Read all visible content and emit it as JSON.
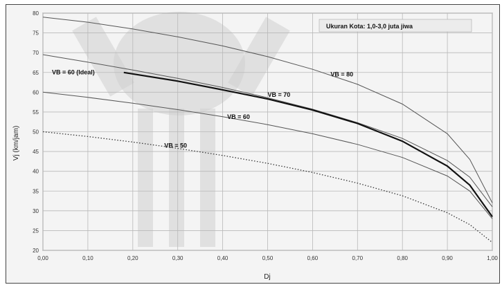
{
  "chart_data": {
    "type": "line",
    "title": "",
    "note": "Ukuran Kota: 1,0-3,0 juta jiwa",
    "xlabel": "Dj",
    "ylabel": "Vj (km/jam)",
    "xlim": [
      0,
      1
    ],
    "ylim": [
      20,
      80
    ],
    "xticks": [
      "0,00",
      "0,10",
      "0,20",
      "0,30",
      "0,40",
      "0,50",
      "0,60",
      "0,70",
      "0,80",
      "0,90",
      "1,00"
    ],
    "yticks": [
      "20",
      "25",
      "30",
      "35",
      "40",
      "45",
      "50",
      "55",
      "60",
      "65",
      "70",
      "75",
      "80"
    ],
    "grid": true,
    "series": [
      {
        "name": "VB = 80",
        "style": "thin",
        "x": [
          0,
          0.1,
          0.2,
          0.3,
          0.4,
          0.5,
          0.6,
          0.7,
          0.8,
          0.9,
          0.95,
          1.0
        ],
        "y": [
          79,
          77.7,
          76,
          74,
          71.7,
          69,
          65.8,
          62,
          57,
          49.5,
          43,
          32
        ]
      },
      {
        "name": "",
        "style": "thin",
        "x": [
          0,
          0.1,
          0.2,
          0.3,
          0.4,
          0.5,
          0.6,
          0.7,
          0.8,
          0.9,
          0.95,
          1.0
        ],
        "y": [
          69.5,
          67.6,
          65.6,
          63.5,
          61.2,
          58.6,
          55.7,
          52.3,
          48.3,
          42.7,
          38.5,
          31
        ]
      },
      {
        "name": "VB = 70",
        "style": "bold",
        "x": [
          0.18,
          0.3,
          0.4,
          0.5,
          0.6,
          0.7,
          0.8,
          0.9,
          0.95,
          1.0
        ],
        "y": [
          65,
          62.8,
          60.6,
          58.3,
          55.5,
          52.1,
          47.6,
          41.3,
          36.5,
          28.5
        ]
      },
      {
        "name": "VB = 60",
        "style": "thin",
        "x": [
          0,
          0.1,
          0.2,
          0.3,
          0.4,
          0.5,
          0.6,
          0.7,
          0.8,
          0.9,
          0.95,
          1.0
        ],
        "y": [
          60,
          58.7,
          57.2,
          55.6,
          53.8,
          51.8,
          49.5,
          46.8,
          43.5,
          38.8,
          35,
          28
        ]
      },
      {
        "name": "VB = 50",
        "style": "dotted",
        "x": [
          0,
          0.1,
          0.2,
          0.3,
          0.4,
          0.5,
          0.6,
          0.7,
          0.8,
          0.9,
          0.95,
          1.0
        ],
        "y": [
          50,
          48.8,
          47.4,
          45.8,
          44,
          42,
          39.7,
          37,
          33.8,
          29.5,
          26.5,
          22
        ]
      }
    ],
    "series_labels": [
      {
        "text": "VB = 60 (Ideal)",
        "x": 0.02,
        "y": 64.5
      },
      {
        "text": "VB = 80",
        "x": 0.64,
        "y": 64
      },
      {
        "text": "VB = 70",
        "x": 0.5,
        "y": 58.8
      },
      {
        "text": "VB = 60",
        "x": 0.41,
        "y": 53.2
      },
      {
        "text": "VB = 50",
        "x": 0.27,
        "y": 46
      }
    ]
  }
}
